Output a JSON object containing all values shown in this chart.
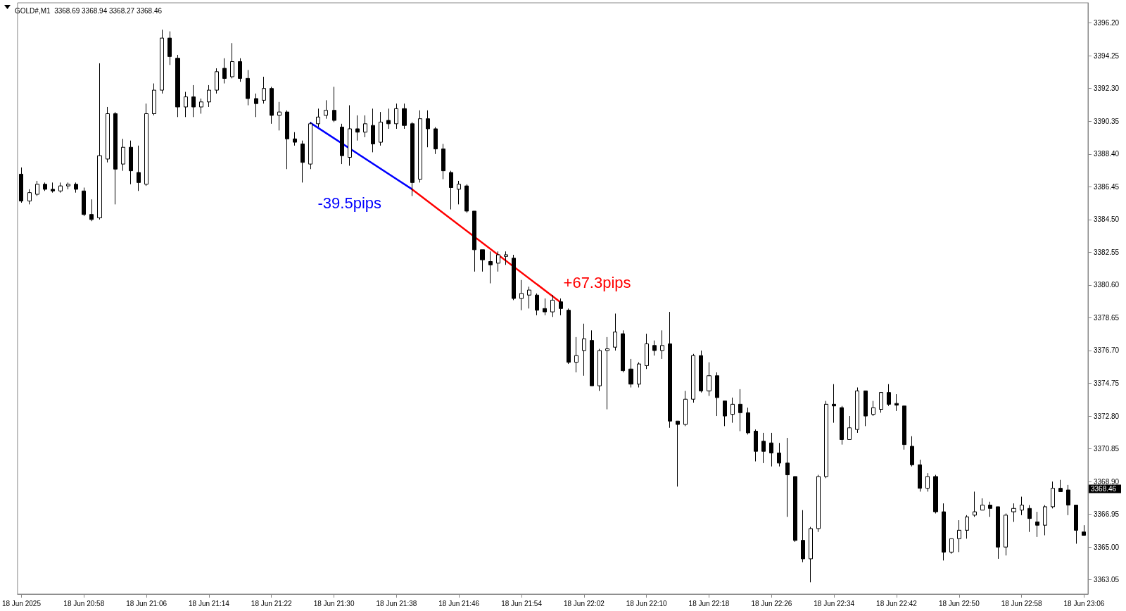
{
  "chart_data": {
    "type": "candlestick",
    "title": "GOLD#,M1  3368.69 3368.94 3368.27 3368.46",
    "categories": [
      "18 Jun 2025",
      null,
      null,
      null,
      null,
      null,
      null,
      null,
      "18 Jun 20:58",
      null,
      null,
      null,
      null,
      null,
      null,
      null,
      "18 Jun 21:06",
      null,
      null,
      null,
      null,
      null,
      null,
      null,
      "18 Jun 21:14",
      null,
      null,
      null,
      null,
      null,
      null,
      null,
      "18 Jun 21:22",
      null,
      null,
      null,
      null,
      null,
      null,
      null,
      "18 Jun 21:30",
      null,
      null,
      null,
      null,
      null,
      null,
      null,
      "18 Jun 21:38",
      null,
      null,
      null,
      null,
      null,
      null,
      null,
      "18 Jun 21:46",
      null,
      null,
      null,
      null,
      null,
      null,
      null,
      "18 Jun 21:54",
      null,
      null,
      null,
      null,
      null,
      null,
      null,
      "18 Jun 22:02",
      null,
      null,
      null,
      null,
      null,
      null,
      null,
      "18 Jun 22:10",
      null,
      null,
      null,
      null,
      null,
      null,
      null,
      "18 Jun 22:18",
      null,
      null,
      null,
      null,
      null,
      null,
      null,
      "18 Jun 22:26",
      null,
      null,
      null,
      null,
      null,
      null,
      null,
      "18 Jun 22:34",
      null,
      null,
      null,
      null,
      null,
      null,
      null,
      "18 Jun 22:42",
      null,
      null,
      null,
      null,
      null,
      null,
      null,
      "18 Jun 22:50",
      null,
      null,
      null,
      null,
      null,
      null,
      null,
      "18 Jun 22:58",
      null,
      null,
      null,
      null,
      null,
      null,
      null,
      "18 Jun 23:06"
    ],
    "ohlc": [
      [
        3387.2,
        3387.6,
        3385.5,
        3385.6
      ],
      [
        3385.6,
        3386.3,
        3385.4,
        3386.1
      ],
      [
        3386.0,
        3386.8,
        3385.9,
        3386.6
      ],
      [
        3386.6,
        3386.7,
        3386.2,
        3386.3
      ],
      [
        3386.3,
        3386.7,
        3386.1,
        3386.2
      ],
      [
        3386.2,
        3386.7,
        3386.1,
        3386.5
      ],
      [
        3386.5,
        3386.7,
        3386.3,
        3386.6
      ],
      [
        3386.6,
        3386.7,
        3386.1,
        3386.3
      ],
      [
        3386.2,
        3386.4,
        3384.7,
        3384.8
      ],
      [
        3384.8,
        3385.7,
        3384.4,
        3384.5
      ],
      [
        3384.6,
        3393.8,
        3384.5,
        3388.3
      ],
      [
        3388.1,
        3391.2,
        3387.9,
        3390.8
      ],
      [
        3390.8,
        3390.9,
        3385.4,
        3387.5
      ],
      [
        3387.8,
        3389.3,
        3387.4,
        3388.8
      ],
      [
        3388.8,
        3389.2,
        3386.6,
        3387.4
      ],
      [
        3387.3,
        3388.9,
        3386.2,
        3386.7
      ],
      [
        3386.6,
        3391.4,
        3386.5,
        3390.8
      ],
      [
        3390.8,
        3392.6,
        3390.7,
        3392.2
      ],
      [
        3392.2,
        3395.8,
        3392.0,
        3395.3
      ],
      [
        3395.3,
        3395.7,
        3393.7,
        3394.2
      ],
      [
        3394.1,
        3394.3,
        3390.6,
        3391.2
      ],
      [
        3391.2,
        3392.1,
        3390.6,
        3391.8
      ],
      [
        3391.8,
        3392.5,
        3390.6,
        3391.2
      ],
      [
        3391.2,
        3391.7,
        3390.8,
        3391.5
      ],
      [
        3391.5,
        3392.5,
        3391.2,
        3392.2
      ],
      [
        3392.2,
        3393.5,
        3392.0,
        3393.3
      ],
      [
        3393.5,
        3394.1,
        3392.6,
        3392.9
      ],
      [
        3393.0,
        3395.0,
        3392.9,
        3393.9
      ],
      [
        3393.9,
        3394.1,
        3392.7,
        3392.9
      ],
      [
        3392.9,
        3393.4,
        3391.3,
        3391.7
      ],
      [
        3391.7,
        3392.0,
        3390.6,
        3391.4
      ],
      [
        3391.6,
        3393.0,
        3391.4,
        3392.3
      ],
      [
        3392.3,
        3392.4,
        3390.2,
        3390.7
      ],
      [
        3390.7,
        3391.5,
        3389.8,
        3390.9
      ],
      [
        3390.9,
        3391.0,
        3387.5,
        3389.3
      ],
      [
        3389.3,
        3389.7,
        3388.9,
        3389.1
      ],
      [
        3389.0,
        3389.2,
        3386.7,
        3387.9
      ],
      [
        3387.8,
        3390.3,
        3387.5,
        3390.2
      ],
      [
        3390.2,
        3391.1,
        3390.0,
        3390.6
      ],
      [
        3390.7,
        3391.6,
        3390.5,
        3391.0
      ],
      [
        3391.0,
        3392.4,
        3390.3,
        3390.4
      ],
      [
        3390.0,
        3390.2,
        3387.8,
        3388.3
      ],
      [
        3388.2,
        3391.3,
        3387.7,
        3389.9
      ],
      [
        3389.9,
        3390.7,
        3389.2,
        3389.7
      ],
      [
        3389.7,
        3390.7,
        3389.4,
        3390.2
      ],
      [
        3390.1,
        3391.1,
        3388.5,
        3389.0
      ],
      [
        3389.1,
        3390.9,
        3388.9,
        3390.3
      ],
      [
        3390.4,
        3391.1,
        3389.9,
        3390.2
      ],
      [
        3390.2,
        3391.4,
        3389.9,
        3391.1
      ],
      [
        3391.1,
        3391.4,
        3389.9,
        3390.1
      ],
      [
        3390.2,
        3390.3,
        3385.9,
        3386.7
      ],
      [
        3386.9,
        3391.0,
        3386.7,
        3390.5
      ],
      [
        3390.5,
        3391.0,
        3388.8,
        3389.9
      ],
      [
        3389.9,
        3390.0,
        3388.4,
        3388.7
      ],
      [
        3388.7,
        3389.0,
        3386.9,
        3387.4
      ],
      [
        3387.3,
        3387.4,
        3385.1,
        3386.4
      ],
      [
        3386.3,
        3386.8,
        3385.4,
        3386.6
      ],
      [
        3386.5,
        3386.6,
        3384.9,
        3385.0
      ],
      [
        3385.0,
        3385.0,
        3381.4,
        3382.7
      ],
      [
        3382.7,
        3382.7,
        3381.4,
        3382.1
      ],
      [
        3382.0,
        3382.6,
        3380.7,
        3381.8
      ],
      [
        3381.9,
        3382.6,
        3381.4,
        3382.4
      ],
      [
        3382.3,
        3382.6,
        3381.8,
        3382.4
      ],
      [
        3382.2,
        3382.4,
        3379.7,
        3379.8
      ],
      [
        3379.8,
        3380.9,
        3379.1,
        3380.1
      ],
      [
        3380.0,
        3380.5,
        3379.2,
        3380.3
      ],
      [
        3380.0,
        3380.1,
        3378.8,
        3379.1
      ],
      [
        3379.2,
        3379.8,
        3378.8,
        3379.0
      ],
      [
        3379.0,
        3380.0,
        3378.7,
        3379.7
      ],
      [
        3379.6,
        3379.8,
        3378.8,
        3379.2
      ],
      [
        3379.1,
        3379.2,
        3375.9,
        3376.0
      ],
      [
        3376.0,
        3377.5,
        3375.4,
        3376.4
      ],
      [
        3376.7,
        3378.3,
        3375.2,
        3377.4
      ],
      [
        3377.3,
        3377.9,
        3374.6,
        3374.6
      ],
      [
        3374.6,
        3376.8,
        3374.3,
        3376.7
      ],
      [
        3376.7,
        3377.5,
        3373.2,
        3376.8
      ],
      [
        3376.9,
        3378.9,
        3376.7,
        3377.8
      ],
      [
        3377.7,
        3377.9,
        3375.4,
        3375.5
      ],
      [
        3375.6,
        3376.2,
        3374.5,
        3374.7
      ],
      [
        3374.7,
        3376.0,
        3374.5,
        3375.9
      ],
      [
        3375.8,
        3377.7,
        3375.6,
        3377.1
      ],
      [
        3377.0,
        3377.3,
        3376.4,
        3376.7
      ],
      [
        3376.7,
        3377.9,
        3376.2,
        3377.0
      ],
      [
        3377.1,
        3379.0,
        3372.1,
        3372.5
      ],
      [
        3372.5,
        3372.5,
        3368.6,
        3372.3
      ],
      [
        3372.3,
        3374.3,
        3372.2,
        3373.8
      ],
      [
        3373.8,
        3376.5,
        3373.6,
        3376.4
      ],
      [
        3376.4,
        3376.7,
        3374.2,
        3374.3
      ],
      [
        3374.3,
        3376.0,
        3374.0,
        3375.2
      ],
      [
        3375.2,
        3375.4,
        3372.8,
        3373.9
      ],
      [
        3373.7,
        3373.7,
        3372.2,
        3372.8
      ],
      [
        3372.9,
        3373.9,
        3372.4,
        3373.5
      ],
      [
        3373.5,
        3374.4,
        3371.9,
        3373.0
      ],
      [
        3373.0,
        3373.3,
        3371.7,
        3371.8
      ],
      [
        3371.9,
        3372.0,
        3370.1,
        3370.7
      ],
      [
        3371.3,
        3371.8,
        3370.0,
        3370.7
      ],
      [
        3371.2,
        3371.8,
        3369.8,
        3370.6
      ],
      [
        3370.6,
        3371.2,
        3369.8,
        3370.0
      ],
      [
        3370.0,
        3371.5,
        3366.8,
        3369.3
      ],
      [
        3369.2,
        3369.2,
        3365.3,
        3365.4
      ],
      [
        3365.4,
        3367.2,
        3364.1,
        3364.3
      ],
      [
        3364.3,
        3366.2,
        3362.9,
        3366.1
      ],
      [
        3366.1,
        3369.3,
        3365.9,
        3369.2
      ],
      [
        3369.2,
        3373.7,
        3369.1,
        3373.5
      ],
      [
        3373.5,
        3374.7,
        3372.4,
        3373.4
      ],
      [
        3373.3,
        3373.4,
        3371.1,
        3371.4
      ],
      [
        3371.4,
        3372.8,
        3371.4,
        3372.1
      ],
      [
        3372.0,
        3374.5,
        3371.8,
        3374.3
      ],
      [
        3374.3,
        3374.3,
        3372.2,
        3372.8
      ],
      [
        3372.9,
        3373.7,
        3372.8,
        3373.3
      ],
      [
        3373.2,
        3374.2,
        3373.0,
        3374.2
      ],
      [
        3374.2,
        3374.7,
        3373.4,
        3373.5
      ],
      [
        3373.55,
        3374.1,
        3373.1,
        3373.45
      ],
      [
        3373.4,
        3373.4,
        3370.8,
        3371.1
      ],
      [
        3371.0,
        3371.6,
        3369.8,
        3369.9
      ],
      [
        3369.9,
        3370.2,
        3368.3,
        3368.5
      ],
      [
        3368.5,
        3369.4,
        3368.3,
        3369.2
      ],
      [
        3369.2,
        3369.3,
        3367.0,
        3367.1
      ],
      [
        3367.1,
        3367.6,
        3364.2,
        3364.7
      ],
      [
        3364.7,
        3365.5,
        3364.6,
        3365.5
      ],
      [
        3365.5,
        3366.6,
        3364.7,
        3366.0
      ],
      [
        3366.0,
        3366.9,
        3365.5,
        3366.8
      ],
      [
        3366.9,
        3368.3,
        3366.8,
        3367.1
      ],
      [
        3367.2,
        3367.9,
        3367.2,
        3367.5
      ],
      [
        3367.5,
        3367.7,
        3366.8,
        3367.3
      ],
      [
        3367.4,
        3367.4,
        3364.3,
        3365.0
      ],
      [
        3365.0,
        3367.0,
        3364.5,
        3366.9
      ],
      [
        3367.1,
        3367.6,
        3366.5,
        3367.3
      ],
      [
        3367.2,
        3368.0,
        3366.9,
        3367.5
      ],
      [
        3367.3,
        3367.5,
        3365.9,
        3366.7
      ],
      [
        3366.5,
        3367.1,
        3365.6,
        3366.3
      ],
      [
        3366.3,
        3367.5,
        3365.7,
        3367.4
      ],
      [
        3367.4,
        3368.9,
        3367.3,
        3368.5
      ],
      [
        3368.5,
        3369.0,
        3368.3,
        3368.3
      ],
      [
        3368.4,
        3368.7,
        3366.9,
        3367.5
      ],
      [
        3367.5,
        3367.5,
        3365.2,
        3366.0
      ],
      [
        3365.9,
        3366.3,
        3365.7,
        3365.7
      ]
    ],
    "series": [
      {
        "type": "line",
        "color": "#0000ff",
        "values": [
          null,
          null,
          null,
          null,
          null,
          null,
          null,
          null,
          null,
          null,
          null,
          null,
          null,
          null,
          null,
          null,
          null,
          null,
          null,
          null,
          null,
          null,
          null,
          null,
          null,
          null,
          null,
          null,
          null,
          null,
          null,
          null,
          null,
          null,
          null,
          null,
          null,
          3390.25,
          null,
          null,
          null,
          null,
          null,
          null,
          null,
          null,
          null,
          null,
          null,
          null,
          3386.3,
          null,
          null,
          null,
          null,
          null,
          null,
          null,
          null,
          null,
          null,
          null,
          null,
          null,
          null,
          null,
          null,
          null,
          null,
          null,
          null,
          null,
          null,
          null,
          null,
          null,
          null,
          null,
          null,
          null,
          null,
          null,
          null,
          null,
          null,
          null,
          null,
          null,
          null,
          null,
          null,
          null,
          null,
          null,
          null,
          null,
          null,
          null,
          null,
          null,
          null,
          null,
          null,
          null,
          null,
          null,
          null,
          null,
          null,
          null,
          null,
          null,
          null,
          null,
          null,
          null,
          null,
          null,
          null,
          null,
          null,
          null,
          null,
          null,
          null,
          null,
          null,
          null,
          null,
          null,
          null,
          null,
          null,
          null,
          null,
          null,
          null
        ]
      },
      {
        "type": "line",
        "color": "#ff0000",
        "values": [
          null,
          null,
          null,
          null,
          null,
          null,
          null,
          null,
          null,
          null,
          null,
          null,
          null,
          null,
          null,
          null,
          null,
          null,
          null,
          null,
          null,
          null,
          null,
          null,
          null,
          null,
          null,
          null,
          null,
          null,
          null,
          null,
          null,
          null,
          null,
          null,
          null,
          null,
          null,
          null,
          null,
          null,
          null,
          null,
          null,
          null,
          null,
          null,
          null,
          null,
          3386.3,
          null,
          null,
          null,
          null,
          null,
          null,
          null,
          null,
          null,
          null,
          null,
          null,
          null,
          null,
          null,
          null,
          null,
          null,
          3379.57,
          null,
          null,
          null,
          null,
          null,
          null,
          null,
          null,
          null,
          null,
          null,
          null,
          null,
          null,
          null,
          null,
          null,
          null,
          null,
          null,
          null,
          null,
          null,
          null,
          null,
          null,
          null,
          null,
          null,
          null,
          null,
          null,
          null,
          null,
          null,
          null,
          null,
          null,
          null,
          null,
          null,
          null,
          null,
          null,
          null,
          null,
          null,
          null,
          null,
          null,
          null,
          null,
          null,
          null,
          null,
          null,
          null,
          null,
          null,
          null,
          null,
          null,
          null,
          null,
          null,
          null,
          null
        ]
      }
    ],
    "annotations": [
      "-39.5pips",
      "+67.3pips",
      "3368.46"
    ],
    "ylim": [
      3362.2,
      3397.4
    ],
    "yticks": [
      {
        "value": 3396.2,
        "label": "3396.20"
      },
      {
        "value": 3394.25,
        "label": "3394.25"
      },
      {
        "value": 3392.3,
        "label": "3392.30"
      },
      {
        "value": 3390.35,
        "label": "3390.35"
      },
      {
        "value": 3388.4,
        "label": "3388.40"
      },
      {
        "value": 3386.45,
        "label": "3386.45"
      },
      {
        "value": 3384.5,
        "label": "3384.50"
      },
      {
        "value": 3382.55,
        "label": "3382.55"
      },
      {
        "value": 3380.6,
        "label": "3380.60"
      },
      {
        "value": 3378.65,
        "label": "3378.65"
      },
      {
        "value": 3376.7,
        "label": "3376.70"
      },
      {
        "value": 3374.75,
        "label": "3374.75"
      },
      {
        "value": 3372.8,
        "label": "3372.80"
      },
      {
        "value": 3370.85,
        "label": "3370.85"
      },
      {
        "value": 3368.9,
        "label": "3368.90"
      },
      {
        "value": 3366.95,
        "label": "3366.95"
      },
      {
        "value": 3365.0,
        "label": "3365.00"
      },
      {
        "value": 3363.05,
        "label": "3363.05"
      }
    ]
  }
}
